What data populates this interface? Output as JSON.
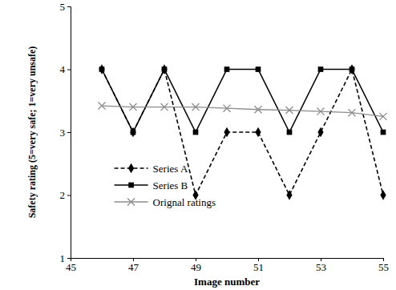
{
  "chart_data": {
    "type": "line",
    "x_label": "Image number",
    "y_label": "Safety rating (5=very safe; 1=very unsafe)",
    "x": [
      46,
      47,
      48,
      49,
      50,
      51,
      52,
      53,
      54,
      55
    ],
    "series": [
      {
        "name": "Series A",
        "color": "#000000",
        "marker": "diamond",
        "line_style": "dashed",
        "values": [
          4,
          3,
          4,
          2,
          3,
          3,
          2,
          3,
          4,
          2
        ]
      },
      {
        "name": "Series B",
        "color": "#000000",
        "marker": "square",
        "line_style": "solid",
        "values": [
          4,
          3,
          4,
          3,
          4,
          4,
          3,
          4,
          4,
          3
        ]
      },
      {
        "name": "Orignal ratings",
        "color": "#8c8c8c",
        "marker": "x",
        "line_style": "solid",
        "values": [
          3.42,
          3.4,
          3.4,
          3.4,
          3.38,
          3.36,
          3.35,
          3.33,
          3.31,
          3.25
        ]
      }
    ],
    "xlim": [
      45,
      55
    ],
    "xticks": [
      45,
      47,
      49,
      51,
      53,
      55
    ],
    "ylim": [
      1,
      5
    ],
    "yticks": [
      1,
      2,
      3,
      4,
      5
    ],
    "grid": false,
    "legend": "lower left"
  }
}
